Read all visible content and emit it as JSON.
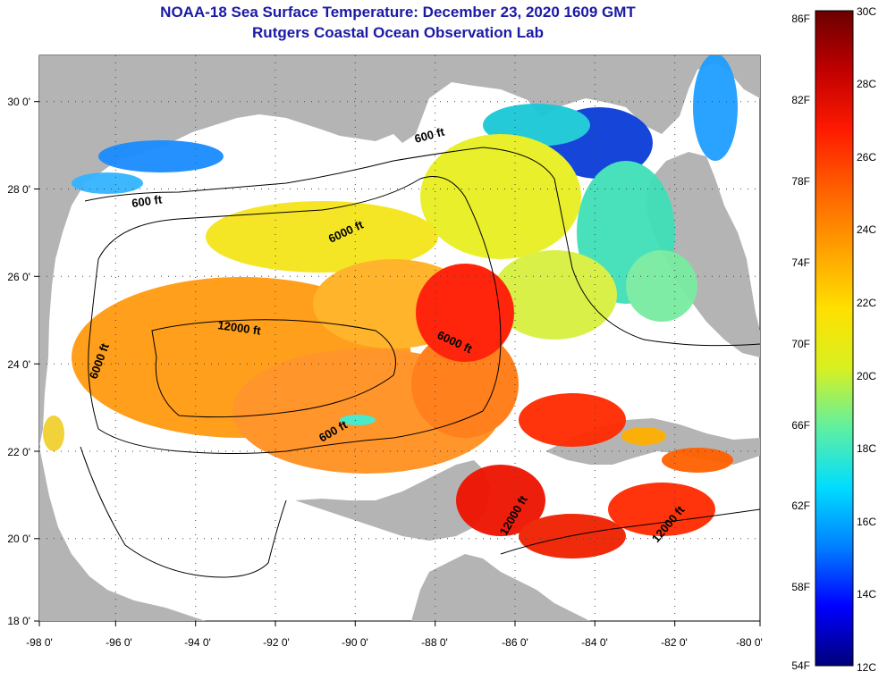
{
  "title": "NOAA-18 Sea Surface Temperature:  December 23, 2020 1609 GMT",
  "subtitle": "Rutgers Coastal Ocean Observation Lab",
  "map": {
    "lat_ticks": [
      "30 0'",
      "28 0'",
      "26 0'",
      "24 0'",
      "22 0'",
      "20 0'",
      "18 0'"
    ],
    "lon_ticks": [
      "-98 0'",
      "-96 0'",
      "-94 0'",
      "-92 0'",
      "-90 0'",
      "-88 0'",
      "-86 0'",
      "-84 0'",
      "-82 0'",
      "-80 0'"
    ],
    "contour_labels": [
      "600 ft",
      "600 ft",
      "600 ft",
      "6000 ft",
      "6000 ft",
      "6000 ft",
      "12000 ft",
      "12000 ft",
      "12000 ft"
    ],
    "land_color": "#b4b4b4",
    "no_data_color": "#ffffff"
  },
  "colorbar": {
    "f_labels": [
      "86F",
      "82F",
      "78F",
      "74F",
      "70F",
      "66F",
      "62F",
      "58F",
      "54F"
    ],
    "c_labels": [
      "30C",
      "28C",
      "26C",
      "24C",
      "22C",
      "20C",
      "18C",
      "16C",
      "14C",
      "12C"
    ],
    "colors": [
      "#00007a",
      "#0000ff",
      "#0080ff",
      "#00ddff",
      "#60f0a0",
      "#d8f020",
      "#ffe000",
      "#ffa000",
      "#ff6000",
      "#ff1a00",
      "#c00000",
      "#6a0000"
    ]
  }
}
